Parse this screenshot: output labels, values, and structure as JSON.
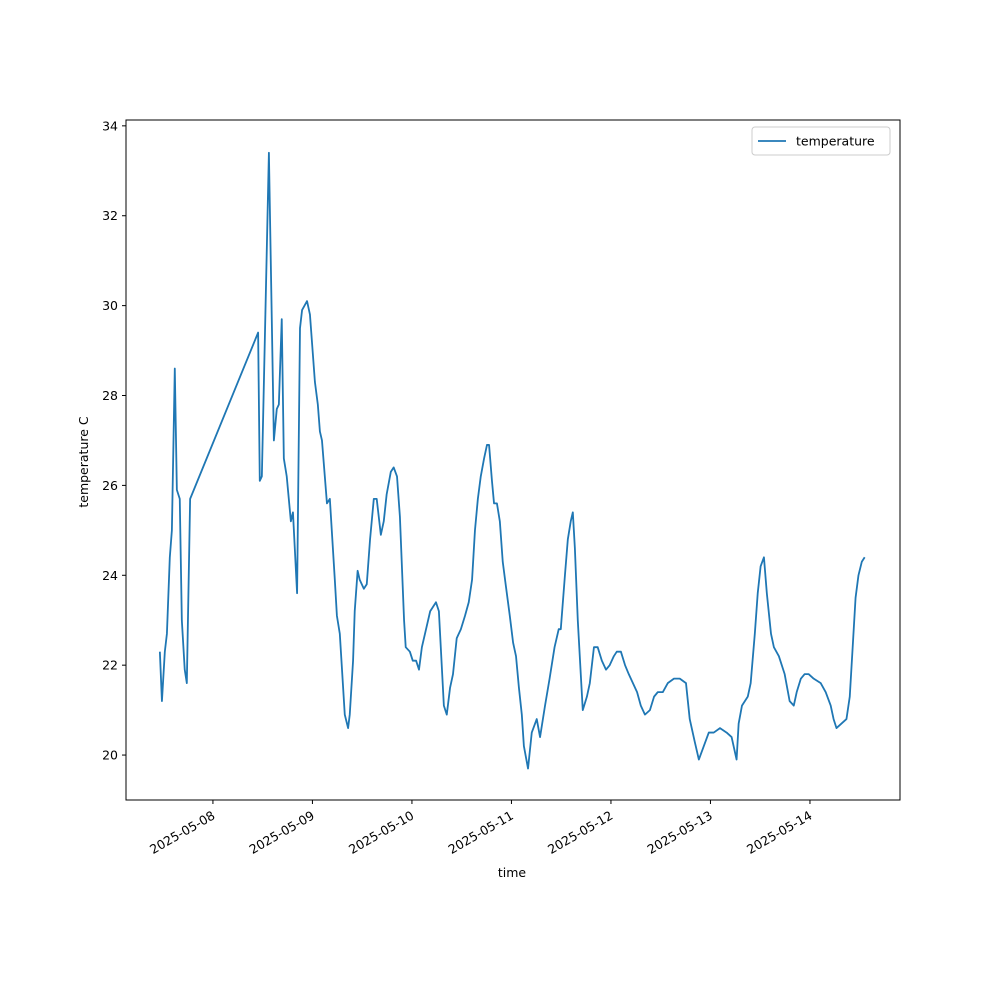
{
  "chart_data": {
    "type": "line",
    "xlabel": "time",
    "ylabel": "temperature C",
    "x": [
      "2025-05-07 11:12",
      "2025-05-07 11:42",
      "2025-05-07 12:24",
      "2025-05-07 12:54",
      "2025-05-07 13:36",
      "2025-05-07 14:06",
      "2025-05-07 14:48",
      "2025-05-07 15:18",
      "2025-05-07 16:00",
      "2025-05-07 16:30",
      "2025-05-07 17:12",
      "2025-05-07 17:42",
      "2025-05-07 18:30",
      "2025-05-08 10:54",
      "2025-05-08 11:18",
      "2025-05-08 11:48",
      "2025-05-08 13:30",
      "2025-05-08 14:42",
      "2025-05-08 15:24",
      "2025-05-08 15:54",
      "2025-05-08 16:36",
      "2025-05-08 17:06",
      "2025-05-08 17:48",
      "2025-05-08 18:48",
      "2025-05-08 19:18",
      "2025-05-08 20:18",
      "2025-05-08 21:00",
      "2025-05-08 21:30",
      "2025-05-08 22:42",
      "2025-05-08 23:24",
      "2025-05-09 00:36",
      "2025-05-09 01:18",
      "2025-05-09 01:48",
      "2025-05-09 02:18",
      "2025-05-09 03:30",
      "2025-05-09 04:12",
      "2025-05-09 05:24",
      "2025-05-09 05:54",
      "2025-05-09 06:36",
      "2025-05-09 07:48",
      "2025-05-09 08:36",
      "2025-05-09 09:00",
      "2025-05-09 09:48",
      "2025-05-09 10:12",
      "2025-05-09 10:54",
      "2025-05-09 11:24",
      "2025-05-09 12:24",
      "2025-05-09 13:06",
      "2025-05-09 13:54",
      "2025-05-09 14:48",
      "2025-05-09 15:30",
      "2025-05-09 16:30",
      "2025-05-09 17:12",
      "2025-05-09 17:54",
      "2025-05-09 18:54",
      "2025-05-09 19:36",
      "2025-05-09 20:24",
      "2025-05-09 21:06",
      "2025-05-09 22:06",
      "2025-05-09 22:30",
      "2025-05-09 23:30",
      "2025-05-10 00:12",
      "2025-05-10 01:00",
      "2025-05-10 01:42",
      "2025-05-10 02:24",
      "2025-05-10 03:24",
      "2025-05-10 04:24",
      "2025-05-10 05:06",
      "2025-05-10 05:48",
      "2025-05-10 06:30",
      "2025-05-10 07:42",
      "2025-05-10 08:24",
      "2025-05-10 09:12",
      "2025-05-10 09:54",
      "2025-05-10 10:48",
      "2025-05-10 11:48",
      "2025-05-10 12:48",
      "2025-05-10 13:42",
      "2025-05-10 14:30",
      "2025-05-10 15:12",
      "2025-05-10 15:54",
      "2025-05-10 16:36",
      "2025-05-10 17:24",
      "2025-05-10 18:06",
      "2025-05-10 18:36",
      "2025-05-10 19:18",
      "2025-05-10 19:48",
      "2025-05-10 20:30",
      "2025-05-10 21:12",
      "2025-05-10 21:54",
      "2025-05-10 22:36",
      "2025-05-10 23:36",
      "2025-05-11 00:24",
      "2025-05-11 01:06",
      "2025-05-11 01:48",
      "2025-05-11 02:30",
      "2025-05-11 03:00",
      "2025-05-11 04:00",
      "2025-05-11 04:54",
      "2025-05-11 06:06",
      "2025-05-11 06:54",
      "2025-05-11 08:06",
      "2025-05-11 09:12",
      "2025-05-11 10:24",
      "2025-05-11 11:24",
      "2025-05-11 11:54",
      "2025-05-11 12:54",
      "2025-05-11 13:36",
      "2025-05-11 14:18",
      "2025-05-11 14:48",
      "2025-05-11 15:18",
      "2025-05-11 16:00",
      "2025-05-11 17:12",
      "2025-05-11 18:12",
      "2025-05-11 18:54",
      "2025-05-11 19:54",
      "2025-05-11 20:48",
      "2025-05-11 21:48",
      "2025-05-11 22:48",
      "2025-05-11 23:42",
      "2025-05-12 00:42",
      "2025-05-12 01:24",
      "2025-05-12 02:24",
      "2025-05-12 03:24",
      "2025-05-12 04:18",
      "2025-05-12 05:18",
      "2025-05-12 06:18",
      "2025-05-12 07:12",
      "2025-05-12 08:12",
      "2025-05-12 09:24",
      "2025-05-12 10:24",
      "2025-05-12 11:18",
      "2025-05-12 12:30",
      "2025-05-12 13:42",
      "2025-05-12 15:12",
      "2025-05-12 16:36",
      "2025-05-12 18:06",
      "2025-05-12 19:00",
      "2025-05-12 20:12",
      "2025-05-12 21:12",
      "2025-05-12 22:24",
      "2025-05-12 23:36",
      "2025-05-13 00:48",
      "2025-05-13 02:18",
      "2025-05-13 03:54",
      "2025-05-13 05:06",
      "2025-05-13 06:18",
      "2025-05-13 06:48",
      "2025-05-13 07:36",
      "2025-05-13 08:18",
      "2025-05-13 09:00",
      "2025-05-13 09:42",
      "2025-05-13 10:42",
      "2025-05-13 11:24",
      "2025-05-13 12:06",
      "2025-05-13 12:54",
      "2025-05-13 13:36",
      "2025-05-13 14:36",
      "2025-05-13 15:18",
      "2025-05-13 16:30",
      "2025-05-13 17:54",
      "2025-05-13 19:06",
      "2025-05-13 20:06",
      "2025-05-13 20:48",
      "2025-05-13 21:48",
      "2025-05-13 22:42",
      "2025-05-13 23:42",
      "2025-05-14 00:54",
      "2025-05-14 02:36",
      "2025-05-14 03:48",
      "2025-05-14 05:00",
      "2025-05-14 05:42",
      "2025-05-14 06:24",
      "2025-05-14 07:36",
      "2025-05-14 08:48",
      "2025-05-14 09:36",
      "2025-05-14 10:18",
      "2025-05-14 11:00",
      "2025-05-14 11:42",
      "2025-05-14 12:30",
      "2025-05-14 13:12"
    ],
    "series": [
      {
        "name": "temperature",
        "color": "#1f77b4",
        "values": [
          22.3,
          21.2,
          22.3,
          22.7,
          24.4,
          25.0,
          28.6,
          25.9,
          25.7,
          23.0,
          21.9,
          21.6,
          25.7,
          29.4,
          26.1,
          26.2,
          33.4,
          27.0,
          27.7,
          27.8,
          29.7,
          26.6,
          26.2,
          25.2,
          25.4,
          23.6,
          29.5,
          29.9,
          30.1,
          29.8,
          28.3,
          27.8,
          27.2,
          27.0,
          25.6,
          25.7,
          23.9,
          23.1,
          22.7,
          20.9,
          20.6,
          20.9,
          22.1,
          23.2,
          24.1,
          23.9,
          23.7,
          23.8,
          24.8,
          25.7,
          25.7,
          24.9,
          25.2,
          25.8,
          26.3,
          26.4,
          26.2,
          25.3,
          23.0,
          22.4,
          22.3,
          22.1,
          22.1,
          21.9,
          22.4,
          22.8,
          23.2,
          23.3,
          23.4,
          23.2,
          21.1,
          20.9,
          21.5,
          21.8,
          22.6,
          22.8,
          23.1,
          23.4,
          23.9,
          25.0,
          25.7,
          26.2,
          26.6,
          26.9,
          26.9,
          26.1,
          25.6,
          25.6,
          25.2,
          24.3,
          23.8,
          23.1,
          22.5,
          22.2,
          21.5,
          20.9,
          20.2,
          19.7,
          20.5,
          20.8,
          20.4,
          21.1,
          21.7,
          22.4,
          22.8,
          22.8,
          24.0,
          24.8,
          25.2,
          25.4,
          24.6,
          23.0,
          21.0,
          21.3,
          21.6,
          22.4,
          22.4,
          22.1,
          21.9,
          22.0,
          22.2,
          22.3,
          22.3,
          22.0,
          21.8,
          21.6,
          21.4,
          21.1,
          20.9,
          21.0,
          21.3,
          21.4,
          21.4,
          21.6,
          21.7,
          21.7,
          21.6,
          20.8,
          20.3,
          19.9,
          20.2,
          20.5,
          20.5,
          20.6,
          20.5,
          20.4,
          19.9,
          20.7,
          21.1,
          21.2,
          21.3,
          21.6,
          22.7,
          23.6,
          24.2,
          24.4,
          23.6,
          22.7,
          22.4,
          22.2,
          21.8,
          21.2,
          21.1,
          21.4,
          21.7,
          21.8,
          21.8,
          21.7,
          21.6,
          21.4,
          21.1,
          20.8,
          20.6,
          20.7,
          20.8,
          21.3,
          22.4,
          23.5,
          24.0,
          24.3,
          24.4
        ]
      }
    ],
    "xlim": [
      "2025-05-07 03:02",
      "2025-05-14 21:43"
    ],
    "xticks": [
      "2025-05-08",
      "2025-05-09",
      "2025-05-10",
      "2025-05-11",
      "2025-05-12",
      "2025-05-13",
      "2025-05-14"
    ],
    "ylim": [
      19.0,
      34.13
    ],
    "yticks": [
      20,
      22,
      24,
      26,
      28,
      30,
      32,
      34
    ],
    "legend": "upper right",
    "grid": false
  }
}
